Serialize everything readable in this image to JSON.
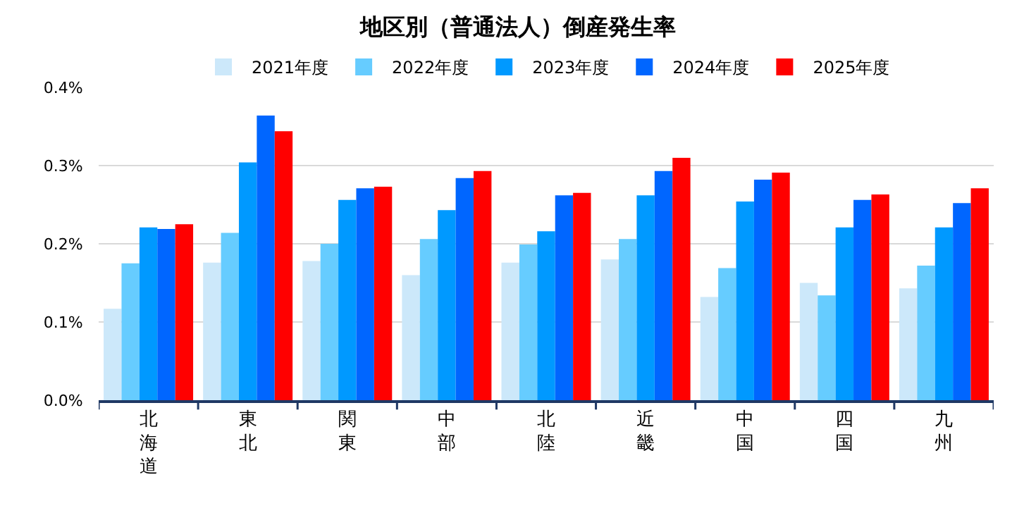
{
  "chart_data": {
    "type": "bar",
    "title": "地区別（普通法人）倒産発生率",
    "categories": [
      "北海道",
      "東北",
      "関東",
      "中部",
      "北陸",
      "近畿",
      "中国",
      "四国",
      "九州"
    ],
    "series": [
      {
        "name": "2021年度",
        "color": "#cce8fa",
        "values": [
          0.117,
          0.176,
          0.178,
          0.16,
          0.176,
          0.18,
          0.132,
          0.15,
          0.143
        ]
      },
      {
        "name": "2022年度",
        "color": "#66ccff",
        "values": [
          0.175,
          0.214,
          0.2,
          0.206,
          0.199,
          0.206,
          0.169,
          0.134,
          0.172
        ]
      },
      {
        "name": "2023年度",
        "color": "#0099ff",
        "values": [
          0.221,
          0.304,
          0.256,
          0.243,
          0.216,
          0.262,
          0.254,
          0.221,
          0.221
        ]
      },
      {
        "name": "2024年度",
        "color": "#0066ff",
        "values": [
          0.219,
          0.364,
          0.271,
          0.284,
          0.262,
          0.293,
          0.282,
          0.256,
          0.252
        ]
      },
      {
        "name": "2025年度",
        "color": "#ff0000",
        "values": [
          0.225,
          0.344,
          0.273,
          0.293,
          0.265,
          0.31,
          0.291,
          0.263,
          0.271
        ]
      }
    ],
    "ylim": [
      0,
      0.4
    ],
    "yticks": [
      {
        "value": 0,
        "label": "0.0%"
      },
      {
        "value": 0.1,
        "label": "0.1%"
      },
      {
        "value": 0.2,
        "label": "0.2%"
      },
      {
        "value": 0.3,
        "label": "0.3%"
      },
      {
        "value": 0.4,
        "label": "0.4%"
      }
    ],
    "grid": "y",
    "legend": "top"
  }
}
